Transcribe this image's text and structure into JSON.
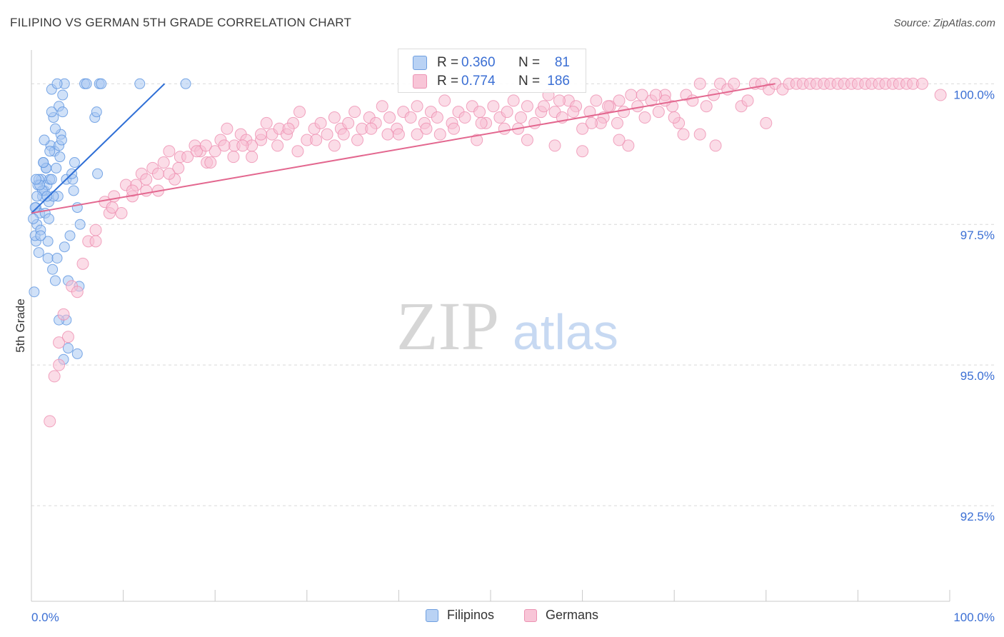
{
  "title": "FILIPINO VS GERMAN 5TH GRADE CORRELATION CHART",
  "source": "Source: ZipAtlas.com",
  "watermark": {
    "zip": "ZIP",
    "atlas": "atlas"
  },
  "colors": {
    "filipino": "#5b93e0",
    "filipino_fill": "#a9c8f2",
    "filipino_line": "#2f6fd6",
    "german": "#ee8fb0",
    "german_fill": "#f7bfd3",
    "german_line": "#e3678f",
    "tick_label": "#3b6fd4",
    "grid": "#d9d9d9"
  },
  "stats": [
    {
      "series": "Filipinos",
      "r_label": "R =",
      "r_value": "0.360",
      "n_label": "N =",
      "n_value": "81"
    },
    {
      "series": "Germans",
      "r_label": "R =",
      "r_value": "0.774",
      "n_label": "N =",
      "n_value": "186"
    }
  ],
  "legend": [
    "Filipinos",
    "Germans"
  ],
  "chart_data": {
    "type": "scatter",
    "title": "FILIPINO VS GERMAN 5TH GRADE CORRELATION CHART",
    "xlabel": "",
    "ylabel": "5th Grade",
    "xlim": [
      0,
      100
    ],
    "ylim": [
      90.8,
      100.6
    ],
    "x_tick_labels": [
      "0.0%",
      "100.0%"
    ],
    "y_ticks": [
      92.5,
      95.0,
      97.5,
      100.0
    ],
    "y_tick_labels": [
      "92.5%",
      "95.0%",
      "97.5%",
      "100.0%"
    ],
    "grid": true,
    "series": [
      {
        "name": "Filipinos",
        "trend": {
          "x": [
            0,
            14.5
          ],
          "y": [
            97.7,
            100.0
          ]
        },
        "points": [
          [
            0.3,
            96.3
          ],
          [
            0.5,
            97.2
          ],
          [
            0.4,
            97.3
          ],
          [
            0.6,
            97.5
          ],
          [
            0.5,
            97.8
          ],
          [
            0.9,
            97.7
          ],
          [
            1.0,
            97.4
          ],
          [
            0.8,
            97.0
          ],
          [
            1.2,
            98.0
          ],
          [
            1.1,
            98.3
          ],
          [
            0.7,
            98.2
          ],
          [
            1.4,
            98.1
          ],
          [
            1.6,
            98.5
          ],
          [
            1.3,
            98.6
          ],
          [
            1.7,
            98.2
          ],
          [
            2.0,
            98.3
          ],
          [
            1.9,
            97.9
          ],
          [
            1.5,
            97.7
          ],
          [
            1.8,
            97.2
          ],
          [
            2.3,
            96.7
          ],
          [
            2.6,
            96.5
          ],
          [
            1.8,
            96.9
          ],
          [
            2.1,
            98.9
          ],
          [
            2.5,
            98.8
          ],
          [
            2.4,
            99.4
          ],
          [
            2.7,
            98.5
          ],
          [
            3.0,
            98.9
          ],
          [
            3.2,
            99.1
          ],
          [
            3.0,
            99.6
          ],
          [
            3.4,
            99.8
          ],
          [
            2.2,
            99.9
          ],
          [
            3.6,
            100.0
          ],
          [
            2.8,
            100.0
          ],
          [
            5.8,
            100.0
          ],
          [
            6.0,
            100.0
          ],
          [
            7.4,
            100.0
          ],
          [
            7.6,
            100.0
          ],
          [
            11.8,
            100.0
          ],
          [
            16.8,
            100.0
          ],
          [
            4.7,
            98.6
          ],
          [
            3.8,
            98.3
          ],
          [
            4.5,
            98.3
          ],
          [
            6.9,
            99.4
          ],
          [
            7.1,
            99.5
          ],
          [
            7.2,
            98.4
          ],
          [
            5.0,
            97.8
          ],
          [
            4.2,
            97.3
          ],
          [
            5.3,
            97.5
          ],
          [
            4.0,
            96.5
          ],
          [
            5.2,
            96.4
          ],
          [
            3.8,
            95.8
          ],
          [
            3.0,
            95.8
          ],
          [
            4.0,
            95.3
          ],
          [
            3.5,
            95.1
          ],
          [
            5.0,
            95.2
          ],
          [
            2.2,
            99.5
          ],
          [
            2.6,
            99.2
          ],
          [
            3.4,
            99.5
          ],
          [
            2.9,
            98.0
          ],
          [
            1.2,
            98.1
          ],
          [
            0.6,
            98.0
          ],
          [
            0.4,
            97.8
          ],
          [
            0.2,
            97.6
          ],
          [
            0.8,
            98.3
          ],
          [
            1.6,
            98.5
          ],
          [
            2.0,
            98.8
          ],
          [
            3.1,
            98.7
          ],
          [
            4.4,
            98.4
          ],
          [
            3.6,
            97.1
          ],
          [
            1.0,
            97.3
          ],
          [
            1.9,
            97.6
          ],
          [
            2.8,
            96.9
          ],
          [
            1.3,
            98.6
          ],
          [
            2.4,
            98.0
          ],
          [
            3.3,
            99.0
          ],
          [
            0.9,
            98.2
          ],
          [
            1.7,
            98.0
          ],
          [
            2.2,
            98.3
          ],
          [
            0.5,
            98.3
          ],
          [
            4.6,
            98.1
          ],
          [
            1.4,
            99.0
          ]
        ]
      },
      {
        "name": "Germans",
        "trend": {
          "x": [
            0,
            81
          ],
          "y": [
            97.7,
            100.0
          ]
        },
        "points": [
          [
            2.0,
            94.0
          ],
          [
            2.5,
            94.8
          ],
          [
            3.0,
            95.0
          ],
          [
            3.0,
            95.4
          ],
          [
            3.5,
            95.9
          ],
          [
            4.0,
            95.5
          ],
          [
            4.4,
            96.4
          ],
          [
            5.0,
            96.3
          ],
          [
            5.6,
            96.8
          ],
          [
            6.2,
            97.2
          ],
          [
            7.0,
            97.4
          ],
          [
            8.0,
            97.9
          ],
          [
            8.5,
            97.7
          ],
          [
            9.0,
            98.0
          ],
          [
            9.8,
            97.7
          ],
          [
            10.3,
            98.2
          ],
          [
            11.0,
            98.0
          ],
          [
            11.4,
            98.2
          ],
          [
            12.0,
            98.4
          ],
          [
            12.5,
            98.1
          ],
          [
            13.2,
            98.5
          ],
          [
            13.8,
            98.4
          ],
          [
            14.4,
            98.6
          ],
          [
            15.0,
            98.8
          ],
          [
            15.6,
            98.3
          ],
          [
            16.2,
            98.7
          ],
          [
            17.0,
            98.7
          ],
          [
            17.8,
            98.9
          ],
          [
            18.4,
            98.8
          ],
          [
            19.1,
            98.6
          ],
          [
            20.0,
            98.8
          ],
          [
            20.6,
            99.0
          ],
          [
            21.3,
            99.2
          ],
          [
            22.1,
            98.9
          ],
          [
            22.8,
            99.1
          ],
          [
            23.4,
            99.0
          ],
          [
            24.0,
            98.7
          ],
          [
            25.0,
            99.0
          ],
          [
            25.6,
            99.3
          ],
          [
            26.2,
            99.1
          ],
          [
            27.0,
            99.2
          ],
          [
            27.8,
            99.1
          ],
          [
            28.5,
            99.3
          ],
          [
            29.2,
            99.5
          ],
          [
            30.0,
            99.0
          ],
          [
            30.8,
            99.2
          ],
          [
            31.5,
            99.3
          ],
          [
            32.2,
            99.1
          ],
          [
            33.0,
            99.4
          ],
          [
            33.7,
            99.2
          ],
          [
            34.5,
            99.3
          ],
          [
            35.2,
            99.5
          ],
          [
            36.0,
            99.2
          ],
          [
            36.8,
            99.4
          ],
          [
            37.5,
            99.3
          ],
          [
            38.2,
            99.6
          ],
          [
            39.0,
            99.4
          ],
          [
            39.8,
            99.2
          ],
          [
            40.5,
            99.5
          ],
          [
            41.3,
            99.4
          ],
          [
            42.0,
            99.6
          ],
          [
            42.8,
            99.3
          ],
          [
            43.5,
            99.5
          ],
          [
            44.2,
            99.4
          ],
          [
            45.0,
            99.7
          ],
          [
            45.8,
            99.3
          ],
          [
            46.5,
            99.5
          ],
          [
            47.2,
            99.4
          ],
          [
            48.0,
            99.6
          ],
          [
            48.8,
            99.5
          ],
          [
            49.5,
            99.3
          ],
          [
            50.3,
            99.6
          ],
          [
            51.0,
            99.4
          ],
          [
            51.8,
            99.5
          ],
          [
            52.5,
            99.7
          ],
          [
            53.3,
            99.4
          ],
          [
            54.0,
            99.6
          ],
          [
            54.8,
            99.3
          ],
          [
            55.5,
            99.5
          ],
          [
            56.3,
            99.8
          ],
          [
            57.0,
            99.5
          ],
          [
            57.8,
            99.4
          ],
          [
            58.5,
            99.7
          ],
          [
            59.3,
            99.6
          ],
          [
            60.0,
            99.2
          ],
          [
            60.8,
            99.5
          ],
          [
            61.5,
            99.7
          ],
          [
            62.3,
            99.4
          ],
          [
            63.0,
            99.6
          ],
          [
            63.8,
            99.3
          ],
          [
            64.5,
            99.5
          ],
          [
            65.3,
            99.8
          ],
          [
            66.0,
            99.6
          ],
          [
            66.8,
            99.4
          ],
          [
            67.5,
            99.7
          ],
          [
            68.3,
            99.5
          ],
          [
            69.0,
            99.8
          ],
          [
            69.8,
            99.6
          ],
          [
            70.5,
            99.3
          ],
          [
            71.3,
            99.8
          ],
          [
            72.0,
            99.7
          ],
          [
            72.8,
            100.0
          ],
          [
            73.5,
            99.6
          ],
          [
            74.3,
            99.8
          ],
          [
            75.0,
            100.0
          ],
          [
            75.8,
            99.9
          ],
          [
            76.5,
            100.0
          ],
          [
            77.3,
            99.6
          ],
          [
            78.0,
            99.7
          ],
          [
            78.8,
            100.0
          ],
          [
            79.5,
            100.0
          ],
          [
            80.3,
            99.9
          ],
          [
            81.0,
            100.0
          ],
          [
            81.8,
            99.9
          ],
          [
            82.5,
            100.0
          ],
          [
            83.3,
            100.0
          ],
          [
            84.0,
            100.0
          ],
          [
            84.8,
            100.0
          ],
          [
            85.5,
            100.0
          ],
          [
            86.3,
            100.0
          ],
          [
            87.0,
            100.0
          ],
          [
            87.8,
            100.0
          ],
          [
            88.5,
            100.0
          ],
          [
            89.3,
            100.0
          ],
          [
            90.0,
            100.0
          ],
          [
            90.8,
            100.0
          ],
          [
            91.5,
            100.0
          ],
          [
            92.3,
            100.0
          ],
          [
            93.0,
            100.0
          ],
          [
            93.8,
            100.0
          ],
          [
            94.5,
            100.0
          ],
          [
            95.3,
            100.0
          ],
          [
            96.0,
            100.0
          ],
          [
            97.0,
            100.0
          ],
          [
            99.0,
            99.8
          ],
          [
            80.0,
            99.3
          ],
          [
            74.5,
            98.9
          ],
          [
            72.8,
            99.1
          ],
          [
            71.0,
            99.1
          ],
          [
            62.0,
            99.3
          ],
          [
            65.0,
            98.9
          ],
          [
            64.0,
            99.0
          ],
          [
            60.0,
            98.8
          ],
          [
            57.0,
            98.9
          ],
          [
            54.0,
            99.0
          ],
          [
            48.5,
            99.0
          ],
          [
            44.5,
            99.1
          ],
          [
            42.0,
            99.1
          ],
          [
            38.8,
            99.1
          ],
          [
            35.5,
            99.0
          ],
          [
            33.0,
            98.9
          ],
          [
            31.0,
            99.0
          ],
          [
            29.0,
            98.8
          ],
          [
            26.8,
            98.9
          ],
          [
            24.0,
            98.9
          ],
          [
            22.0,
            98.7
          ],
          [
            19.5,
            98.6
          ],
          [
            18.0,
            98.8
          ],
          [
            16.0,
            98.5
          ],
          [
            15.0,
            98.4
          ],
          [
            13.8,
            98.1
          ],
          [
            12.5,
            98.3
          ],
          [
            11.0,
            98.1
          ],
          [
            8.8,
            97.8
          ],
          [
            7.0,
            97.2
          ],
          [
            70.0,
            99.4
          ],
          [
            69.0,
            99.7
          ],
          [
            68.0,
            99.8
          ],
          [
            66.5,
            99.8
          ],
          [
            64.0,
            99.7
          ],
          [
            62.8,
            99.6
          ],
          [
            61.0,
            99.3
          ],
          [
            59.0,
            99.5
          ],
          [
            57.5,
            99.7
          ],
          [
            55.8,
            99.6
          ],
          [
            53.0,
            99.2
          ],
          [
            51.5,
            99.2
          ],
          [
            49.0,
            99.3
          ],
          [
            46.0,
            99.2
          ],
          [
            43.0,
            99.2
          ],
          [
            40.0,
            99.1
          ],
          [
            37.0,
            99.2
          ],
          [
            34.0,
            99.1
          ],
          [
            28.0,
            99.2
          ],
          [
            25.0,
            99.1
          ],
          [
            23.0,
            98.9
          ],
          [
            21.0,
            98.9
          ],
          [
            19.0,
            98.9
          ]
        ]
      }
    ]
  }
}
